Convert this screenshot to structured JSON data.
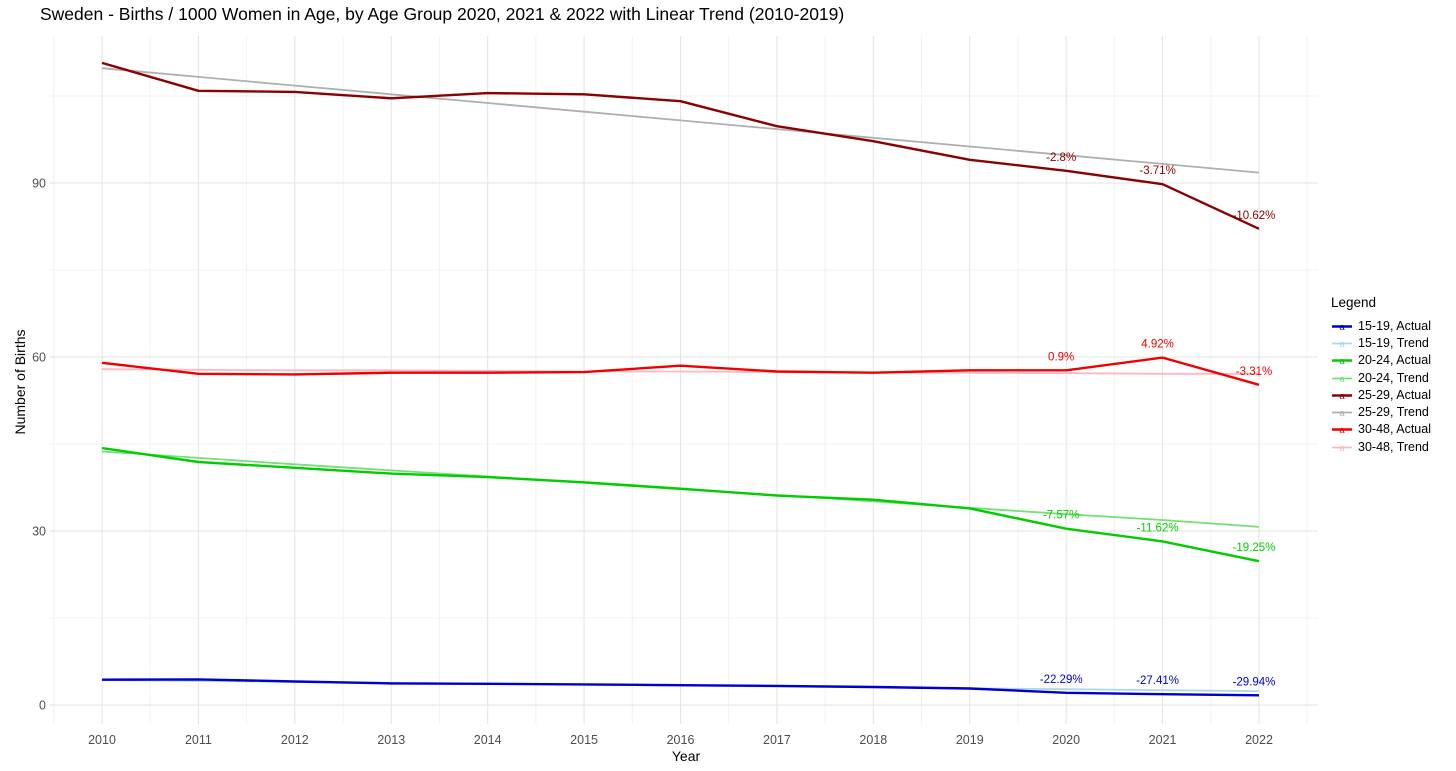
{
  "chart_data": {
    "type": "line",
    "title": "Sweden - Births / 1000 Women in Age, by Age Group 2020, 2021 & 2022 with Linear Trend (2010-2019)",
    "xlabel": "Year",
    "ylabel": "Number of Births",
    "legend_title": "Legend",
    "legend_position": "right",
    "grid": true,
    "x": [
      2010,
      2011,
      2012,
      2013,
      2014,
      2015,
      2016,
      2017,
      2018,
      2019,
      2020,
      2021,
      2022
    ],
    "x_tick_labels": [
      "2010",
      "2011",
      "2012",
      "2013",
      "2014",
      "2015",
      "2016",
      "2017",
      "2018",
      "2019",
      "2020",
      "2021",
      "2022"
    ],
    "y_ticks": [
      0,
      30,
      60,
      90
    ],
    "y_tick_labels": [
      "0",
      "30",
      "60",
      "90"
    ],
    "ylim": [
      -3.4,
      115.3
    ],
    "xlim": [
      2009.46,
      2022.61
    ],
    "series": [
      {
        "name": "15-19, Actual",
        "kind": "actual",
        "color": "#0000CD",
        "width": 2.4,
        "values": [
          4.36,
          4.42,
          4.05,
          3.72,
          3.65,
          3.55,
          3.42,
          3.3,
          3.1,
          2.85,
          2.11,
          1.86,
          1.68
        ]
      },
      {
        "name": "15-19, Trend",
        "kind": "trend",
        "color": "#ADD8E6",
        "width": 1.8,
        "values": [
          4.3,
          4.14,
          3.98,
          3.83,
          3.67,
          3.51,
          3.35,
          3.19,
          3.04,
          2.88,
          2.72,
          2.56,
          2.4
        ]
      },
      {
        "name": "20-24, Actual",
        "kind": "actual",
        "color": "#00CD00",
        "width": 2.4,
        "values": [
          44.3,
          41.9,
          40.9,
          39.9,
          39.3,
          38.4,
          37.3,
          36.1,
          35.4,
          33.9,
          30.4,
          28.2,
          24.8
        ]
      },
      {
        "name": "20-24, Trend",
        "kind": "trend",
        "color": "#76DF76",
        "width": 1.8,
        "values": [
          43.7,
          42.6,
          41.5,
          40.45,
          39.4,
          38.3,
          37.2,
          36.2,
          35.1,
          34.0,
          32.9,
          31.9,
          30.7
        ]
      },
      {
        "name": "25-29, Actual",
        "kind": "actual",
        "color": "#8B0000",
        "width": 2.4,
        "values": [
          110.7,
          105.9,
          105.7,
          104.6,
          105.5,
          105.3,
          104.1,
          99.8,
          97.2,
          94.0,
          92.1,
          89.8,
          82.1
        ]
      },
      {
        "name": "25-29, Trend",
        "kind": "trend",
        "color": "#AFAFAF",
        "width": 1.8,
        "values": [
          109.8,
          108.3,
          106.8,
          105.3,
          103.8,
          102.3,
          100.8,
          99.3,
          97.8,
          96.3,
          94.8,
          93.3,
          91.8
        ]
      },
      {
        "name": "30-48, Actual",
        "kind": "actual",
        "color": "#EE0000",
        "width": 2.4,
        "values": [
          59.0,
          57.1,
          57.0,
          57.3,
          57.3,
          57.4,
          58.5,
          57.5,
          57.3,
          57.7,
          57.7,
          59.9,
          55.2
        ]
      },
      {
        "name": "30-48, Trend",
        "kind": "trend",
        "color": "#FFB6C1",
        "width": 1.8,
        "values": [
          57.9,
          57.8,
          57.7,
          57.7,
          57.6,
          57.5,
          57.5,
          57.4,
          57.3,
          57.3,
          57.2,
          57.1,
          57.1
        ]
      }
    ],
    "annotations": [
      {
        "series": "25-29, Actual",
        "year": 2020,
        "value": 92.1,
        "label": "-2.8%"
      },
      {
        "series": "25-29, Actual",
        "year": 2021,
        "value": 89.8,
        "label": "-3.71%"
      },
      {
        "series": "25-29, Actual",
        "year": 2022,
        "value": 82.1,
        "label": "-10.62%"
      },
      {
        "series": "30-48, Actual",
        "year": 2020,
        "value": 57.7,
        "label": "0.9%"
      },
      {
        "series": "30-48, Actual",
        "year": 2021,
        "value": 59.9,
        "label": "4.92%"
      },
      {
        "series": "30-48, Actual",
        "year": 2022,
        "value": 55.2,
        "label": "-3.31%"
      },
      {
        "series": "20-24, Actual",
        "year": 2020,
        "value": 30.4,
        "label": "-7.57%"
      },
      {
        "series": "20-24, Actual",
        "year": 2021,
        "value": 28.2,
        "label": "-11.62%"
      },
      {
        "series": "20-24, Actual",
        "year": 2022,
        "value": 24.8,
        "label": "-19.25%"
      },
      {
        "series": "15-19, Actual",
        "year": 2020,
        "value": 2.11,
        "label": "-22.29%"
      },
      {
        "series": "15-19, Actual",
        "year": 2021,
        "value": 1.86,
        "label": "-27.41%"
      },
      {
        "series": "15-19, Actual",
        "year": 2022,
        "value": 1.68,
        "label": "-29.94%"
      }
    ],
    "colors": {
      "grid_major": "#E3E3E3",
      "grid_minor": "#F2F2F2",
      "tick_text": "#4D4D4D"
    }
  }
}
